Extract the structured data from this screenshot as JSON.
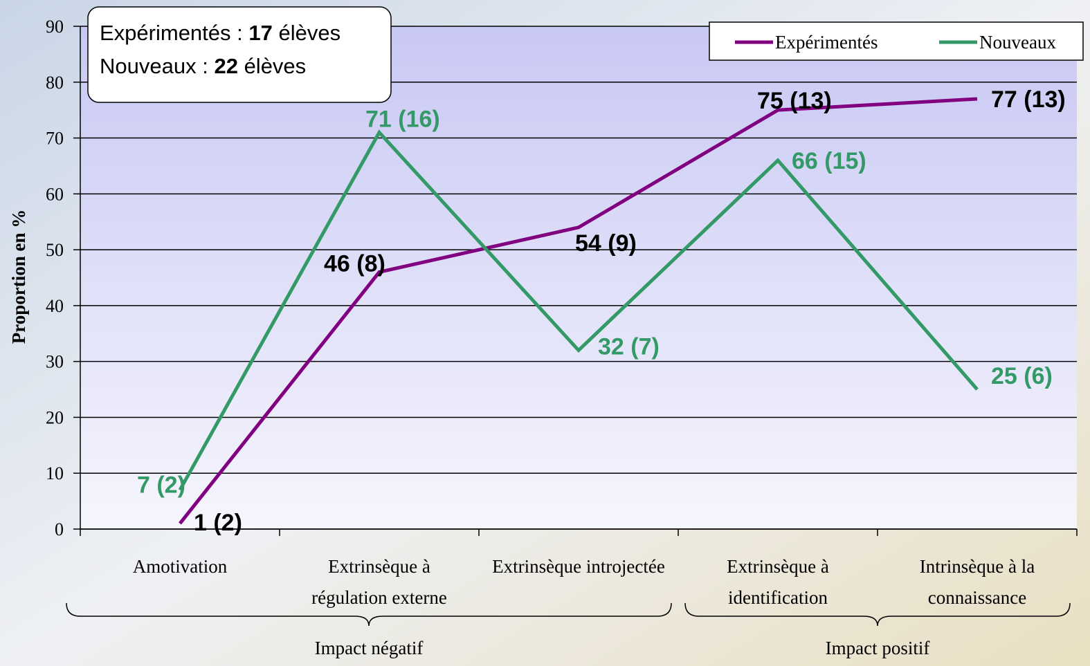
{
  "chart_data": {
    "type": "line",
    "categories": [
      [
        "Amotivation"
      ],
      [
        "Extrinsèque à",
        "régulation externe"
      ],
      [
        "Extrinsèque introjectée"
      ],
      [
        "Extrinsèque à",
        "identification"
      ],
      [
        "Intrinsèque à la",
        "connaissance"
      ]
    ],
    "series": [
      {
        "name": "Expérimentés",
        "color": "#800080",
        "values": [
          1,
          46,
          54,
          75,
          77
        ],
        "value_labels": [
          "1 (2)",
          "46 (8)",
          "54 (9)",
          "75 (13)",
          "77 (13)"
        ],
        "label_color": "#000000"
      },
      {
        "name": "Nouveaux",
        "color": "#339966",
        "values": [
          7,
          71,
          32,
          66,
          25
        ],
        "value_labels": [
          "7 (2)",
          "71 (16)",
          "32 (7)",
          "66 (15)",
          "25 (6)"
        ],
        "label_color": "#339966"
      }
    ],
    "ylabel": "Proportion en %",
    "ylim": [
      0,
      90
    ],
    "yticks": [
      0,
      10,
      20,
      30,
      40,
      50,
      60,
      70,
      80,
      90
    ],
    "grid": true,
    "legend": "top-right",
    "groups": [
      "Impact négatif",
      "Impact positif"
    ],
    "info": [
      {
        "label": "Expérimentés :",
        "count": 17,
        "unit": "élèves"
      },
      {
        "label": "Nouveaux :",
        "count": 22,
        "unit": "élèves"
      }
    ]
  }
}
